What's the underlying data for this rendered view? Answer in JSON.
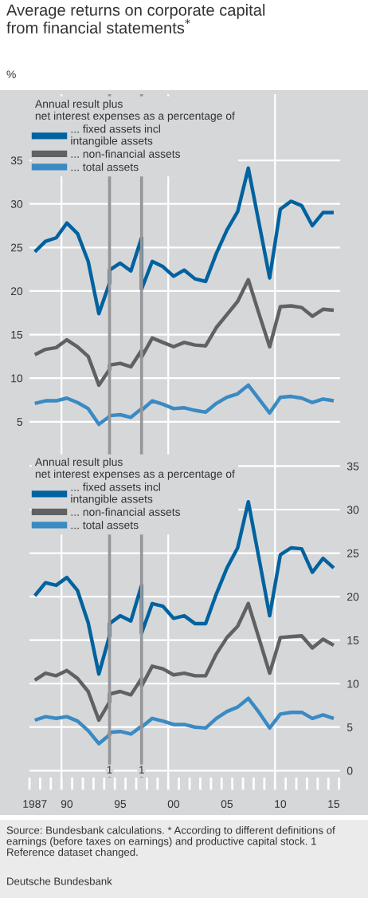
{
  "chart_data": [
    {
      "type": "line",
      "title": "Average returns on corporate capital\nfrom financial statements$^{*}$",
      "ylabel": "%",
      "legend_title": "Annual result plus\nnet interest expenses as a percentage of",
      "legend": "top left",
      "grid": "y",
      "tick_labels": "y",
      "x": [
        1987,
        1988,
        1989,
        1990,
        1991,
        1992,
        1993,
        1994,
        1994,
        1995,
        1996,
        1997,
        1997,
        1998,
        1999,
        2000,
        2001,
        2002,
        2003,
        2004,
        2005,
        2006,
        2007,
        2008,
        2009,
        2010,
        2011,
        2012,
        2013,
        2014,
        2015
      ],
      "xlim": [
        1986.5,
        2015.6
      ],
      "ylim": [
        1.5,
        42.6
      ],
      "yticks": [
        5,
        10,
        15,
        20,
        25,
        30,
        35
      ],
      "series": [
        {
          "name": "... fixed assets incl\nintangible assets",
          "color": "#00629f",
          "values": [
            24.5,
            25.7,
            26.1,
            27.8,
            26.6,
            23.4,
            17.4,
            20.9,
            22.4,
            23.2,
            22.3,
            26.1,
            20.2,
            23.4,
            22.8,
            21.7,
            22.4,
            21.4,
            21.1,
            24.3,
            27.0,
            29.1,
            34.1,
            27.8,
            21.5,
            29.4,
            30.3,
            29.8,
            27.5,
            29.0,
            29.0
          ]
        },
        {
          "name": "... non-financial assets",
          "color": "#606163",
          "values": [
            12.7,
            13.3,
            13.5,
            14.4,
            13.6,
            12.5,
            9.2,
            11.0,
            11.5,
            11.7,
            11.3,
            13.2,
            12.4,
            14.6,
            14.1,
            13.6,
            14.1,
            13.8,
            13.7,
            15.8,
            17.3,
            18.8,
            21.3,
            17.4,
            13.6,
            18.2,
            18.3,
            18.1,
            17.1,
            17.9,
            17.8
          ]
        },
        {
          "name": "... total assets",
          "color": "#3a8ac3",
          "values": [
            7.1,
            7.4,
            7.4,
            7.7,
            7.2,
            6.5,
            4.7,
            5.6,
            5.7,
            5.8,
            5.5,
            6.5,
            6.3,
            7.4,
            7.0,
            6.5,
            6.6,
            6.3,
            6.1,
            7.1,
            7.8,
            8.2,
            9.2,
            7.6,
            6.0,
            7.8,
            7.9,
            7.7,
            7.2,
            7.6,
            7.4
          ]
        }
      ],
      "ref_lines": [
        {
          "axis": "x",
          "value": 1989.5,
          "color": "#ffffff"
        },
        {
          "axis": "x",
          "value": 1999.5,
          "color": "#ffffff"
        },
        {
          "axis": "x",
          "value": 2009.5,
          "color": "#ffffff"
        },
        {
          "axis": "x",
          "value": 1994,
          "color": "#959699"
        },
        {
          "axis": "x",
          "value": 1997,
          "color": "#959699"
        }
      ]
    },
    {
      "type": "line",
      "legend_title": "Annual result plus\nnet interest expenses as a percentage of",
      "legend": "top left",
      "grid": "y",
      "x": [
        1987,
        1988,
        1989,
        1990,
        1991,
        1992,
        1993,
        1994,
        1994,
        1995,
        1996,
        1997,
        1997,
        1998,
        1999,
        2000,
        2001,
        2002,
        2003,
        2004,
        2005,
        2006,
        2007,
        2008,
        2009,
        2010,
        2011,
        2012,
        2013,
        2014,
        2015
      ],
      "xlim": [
        1986.5,
        2015.6
      ],
      "ylim": [
        -0.8,
        36.6
      ],
      "yticks": [
        0,
        5,
        10,
        15,
        20,
        25,
        30,
        35
      ],
      "xticks": [
        {
          "value": 1987,
          "label": "1987"
        },
        {
          "value": 1990,
          "label": "90"
        },
        {
          "value": 1995,
          "label": "95"
        },
        {
          "value": 2000,
          "label": "00"
        },
        {
          "value": 2005,
          "label": "05"
        },
        {
          "value": 2010,
          "label": "10"
        },
        {
          "value": 2015,
          "label": "15"
        },
        {
          "value": 1986.5,
          "label": null
        },
        {
          "value": 1987.5,
          "label": null
        },
        {
          "value": 1988.5,
          "label": null
        },
        {
          "value": 1989.5,
          "label": null
        },
        {
          "value": 1990.5,
          "label": null
        },
        {
          "value": 1991.5,
          "label": null
        },
        {
          "value": 1992.5,
          "label": null
        },
        {
          "value": 1993.5,
          "label": null
        },
        {
          "value": 1994.5,
          "label": null
        },
        {
          "value": 1995.5,
          "label": null
        },
        {
          "value": 1996.5,
          "label": null
        },
        {
          "value": 1997.5,
          "label": null
        },
        {
          "value": 1998.5,
          "label": null
        },
        {
          "value": 1999.5,
          "label": null
        },
        {
          "value": 2000.5,
          "label": null
        },
        {
          "value": 2001.5,
          "label": null
        },
        {
          "value": 2002.5,
          "label": null
        },
        {
          "value": 2003.5,
          "label": null
        },
        {
          "value": 2004.5,
          "label": null
        },
        {
          "value": 2005.5,
          "label": null
        },
        {
          "value": 2006.5,
          "label": null
        },
        {
          "value": 2007.5,
          "label": null
        },
        {
          "value": 2008.5,
          "label": null
        },
        {
          "value": 2009.5,
          "label": null
        },
        {
          "value": 2010.5,
          "label": null
        },
        {
          "value": 2011.5,
          "label": null
        },
        {
          "value": 2012.5,
          "label": null
        },
        {
          "value": 2013.5,
          "label": null
        },
        {
          "value": 2014.5,
          "label": null
        },
        {
          "value": 2015.5,
          "label": null
        }
      ],
      "series": [
        {
          "name": "... fixed assets incl\nintangible assets",
          "color": "#00629f",
          "values": [
            20.1,
            21.6,
            21.3,
            22.2,
            20.7,
            17.0,
            11.1,
            15.5,
            16.9,
            17.8,
            17.2,
            21.3,
            15.8,
            19.2,
            18.9,
            17.5,
            17.8,
            16.9,
            16.9,
            20.3,
            23.3,
            25.6,
            30.9,
            24.4,
            17.8,
            24.8,
            25.6,
            25.5,
            22.8,
            24.4,
            23.3
          ]
        },
        {
          "name": "... non-financial assets",
          "color": "#606163",
          "values": [
            10.4,
            11.2,
            10.9,
            11.5,
            10.6,
            9.1,
            5.8,
            7.9,
            8.8,
            9.1,
            8.7,
            10.6,
            9.7,
            12.0,
            11.7,
            11.0,
            11.2,
            10.9,
            10.9,
            13.4,
            15.3,
            16.6,
            19.2,
            15.2,
            11.2,
            15.3,
            15.4,
            15.5,
            14.1,
            15.1,
            14.4
          ]
        },
        {
          "name": "... total assets",
          "color": "#3a8ac3",
          "values": [
            5.8,
            6.2,
            6.0,
            6.2,
            5.7,
            4.6,
            3.1,
            4.1,
            4.4,
            4.5,
            4.2,
            5.1,
            5.0,
            6.0,
            5.7,
            5.3,
            5.3,
            5.0,
            4.9,
            6.0,
            6.8,
            7.3,
            8.3,
            6.7,
            4.9,
            6.5,
            6.7,
            6.7,
            6.0,
            6.4,
            6.0
          ]
        }
      ],
      "ref_lines": [
        {
          "axis": "x",
          "value": 1989.5,
          "color": "#ffffff"
        },
        {
          "axis": "x",
          "value": 1999.5,
          "color": "#ffffff"
        },
        {
          "axis": "x",
          "value": 2009.5,
          "color": "#ffffff"
        },
        {
          "axis": "x",
          "value": 1994,
          "color": "#959699"
        },
        {
          "axis": "x",
          "value": 1997,
          "color": "#959699"
        }
      ],
      "annotations": [
        {
          "text": "1",
          "x": 1994,
          "y": 0
        },
        {
          "text": "1",
          "x": 1997,
          "y": 0
        },
        "Source: Bundesbank calculations. * According to different definitions of earnings (before taxes on earnings) and productive capital stock. 1 Reference dataset changed.",
        "Deutsche Bundesbank"
      ]
    }
  ]
}
